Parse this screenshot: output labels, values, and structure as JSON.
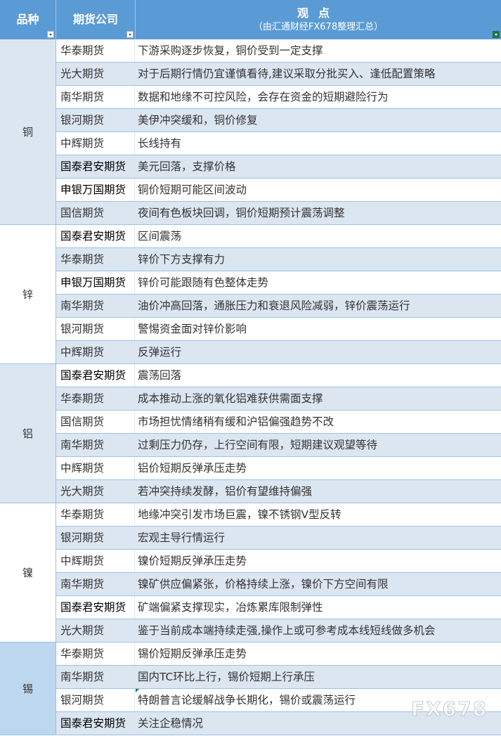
{
  "header": {
    "col_variety": "品种",
    "col_company": "期货公司",
    "col_view_title": "观点",
    "col_view_subtitle": "（由汇通财经FX678整理汇总）"
  },
  "colors": {
    "header": "#5b9bd5",
    "band": "#dce6f1",
    "tin": "#bdd7ee",
    "border": "#9bc2e6"
  },
  "groups": [
    {
      "variety": "铜",
      "rows": [
        {
          "company": "华泰期货",
          "view": "下游采购逐步恢复，铜价受到一定支撑"
        },
        {
          "company": "光大期货",
          "view": "对于后期行情仍宜谨慎看待,建议采取分批买入、逢低配置策略"
        },
        {
          "company": "南华期货",
          "view": "数据和地缘不可控风险，会存在资金的短期避险行为"
        },
        {
          "company": "银河期货",
          "view": "美伊冲突缓和，铜价修复"
        },
        {
          "company": "中辉期货",
          "view": "长线持有"
        },
        {
          "company": "国泰君安期货",
          "view": "美元回落，支撑价格"
        },
        {
          "company": "申银万国期货",
          "view": "铜价短期可能区间波动"
        },
        {
          "company": "国信期货",
          "view": "夜间有色板块回调，铜价短期预计震荡调整"
        }
      ]
    },
    {
      "variety": "锌",
      "rows": [
        {
          "company": "国泰君安期货",
          "view": "区间震荡"
        },
        {
          "company": "华泰期货",
          "view": "锌价下方支撑有力"
        },
        {
          "company": "申银万国期货",
          "view": "锌价可能跟随有色整体走势"
        },
        {
          "company": "南华期货",
          "view": "油价冲高回落，通胀压力和衰退风险减弱，锌价震荡运行"
        },
        {
          "company": "银河期货",
          "view": "警惕资金面对锌价影响"
        },
        {
          "company": "中辉期货",
          "view": "反弹运行"
        }
      ]
    },
    {
      "variety": "铝",
      "rows": [
        {
          "company": "国泰君安期货",
          "view": "震荡回落"
        },
        {
          "company": "华泰期货",
          "view": "成本推动上涨的氧化铝难获供需面支撑"
        },
        {
          "company": "国信期货",
          "view": "市场担忧情绪稍有缓和沪铝偏强趋势不改"
        },
        {
          "company": "南华期货",
          "view": "过剩压力仍存，上行空间有限，短期建议观望等待"
        },
        {
          "company": "中辉期货",
          "view": "铝价短期反弹承压走势"
        },
        {
          "company": "光大期货",
          "view": "若冲突持续发酵，铝价有望维持偏强"
        }
      ]
    },
    {
      "variety": "镍",
      "rows": [
        {
          "company": "华泰期货",
          "view": "地缘冲突引发市场巨震，镍不锈钢V型反转"
        },
        {
          "company": "银河期货",
          "view": "宏观主导行情运行"
        },
        {
          "company": "中辉期货",
          "view": "镍价短期反弹承压走势"
        },
        {
          "company": "南华期货",
          "view": "镍矿供应偏紧张，价格持续上涨，镍价下方空间有限"
        },
        {
          "company": "国泰君安期货",
          "view": "矿端偏紧支撑现实，冶炼累库限制弹性"
        },
        {
          "company": "光大期货",
          "view": "鉴于当前成本端持续走强,操作上或可参考成本线短线做多机会"
        }
      ]
    },
    {
      "variety": "锡",
      "rows": [
        {
          "company": "华泰期货",
          "view": "锡价短期反弹承压走势"
        },
        {
          "company": "南华期货",
          "view": "国内TC环比上行，锡价短期上行承压"
        },
        {
          "company": "银河期货",
          "view": "特朗普言论缓解战争长期化，锡价或震荡运行"
        },
        {
          "company": "国泰君安期货",
          "view": "关注企稳情况"
        }
      ]
    }
  ],
  "watermark": "FX678"
}
